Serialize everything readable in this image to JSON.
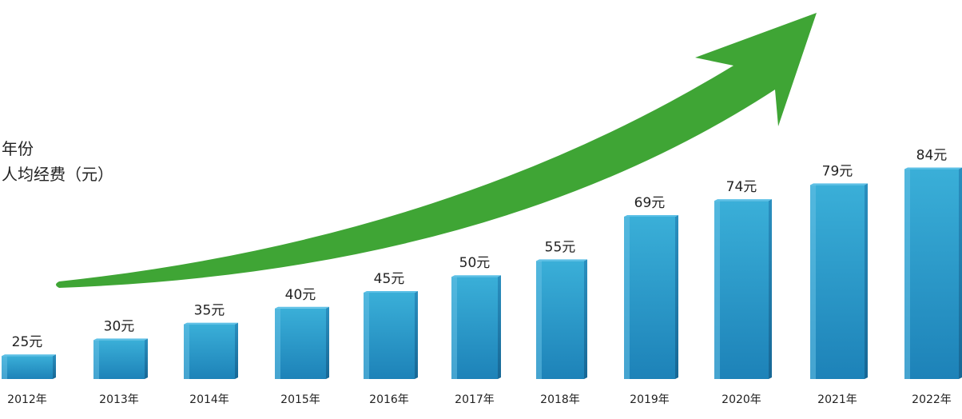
{
  "legend": {
    "line1": "年份",
    "line2": "人均经费（元）"
  },
  "colors": {
    "bar_top": "#3aafd8",
    "bar_bottom": "#1d82b8",
    "bar_side": "#1a6f9d",
    "bar_highlight": "#66bfe3",
    "arrow": "#3fa535",
    "text": "#222222"
  },
  "chart_data": {
    "type": "bar",
    "categories": [
      "2012年",
      "2013年",
      "2014年",
      "2015年",
      "2016年",
      "2017年",
      "2018年",
      "2019年",
      "2020年",
      "2021年",
      "2022年"
    ],
    "values": [
      25,
      30,
      35,
      40,
      45,
      50,
      55,
      69,
      74,
      79,
      84
    ],
    "data_labels": [
      "25元",
      "30元",
      "35元",
      "40元",
      "45元",
      "50元",
      "55元",
      "69元",
      "74元",
      "79元",
      "84元"
    ],
    "trend_arrow": "increasing",
    "grid": false
  }
}
